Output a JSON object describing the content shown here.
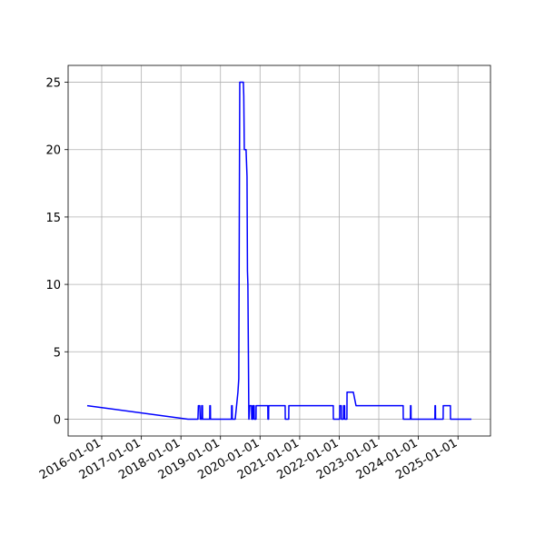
{
  "chart_data": {
    "type": "line",
    "x": [
      "2015-08-20",
      "2018-03-07",
      "2018-06-07",
      "2018-06-11",
      "2018-06-24",
      "2018-06-28",
      "2018-07-11",
      "2018-07-12",
      "2018-07-19",
      "2018-07-20",
      "2018-09-24",
      "2018-09-25",
      "2018-09-30",
      "2018-10-01",
      "2019-04-13",
      "2019-04-14",
      "2019-04-19",
      "2019-04-20",
      "2019-05-17",
      "2019-06-11",
      "2019-06-19",
      "2019-06-28",
      "2019-07-31",
      "2019-08-04",
      "2019-08-09",
      "2019-08-25",
      "2019-09-03",
      "2019-09-07",
      "2019-09-11",
      "2019-09-20",
      "2019-09-21",
      "2019-09-28",
      "2019-10-15",
      "2019-10-16",
      "2019-10-27",
      "2019-10-28",
      "2019-11-08",
      "2019-11-09",
      "2019-11-25",
      "2019-11-26",
      "2020-03-13",
      "2020-03-14",
      "2020-03-20",
      "2020-03-21",
      "2020-08-20",
      "2020-08-21",
      "2020-09-22",
      "2020-09-23",
      "2021-11-07",
      "2021-11-08",
      "2022-01-05",
      "2022-01-06",
      "2022-01-20",
      "2022-01-21",
      "2022-02-09",
      "2022-02-10",
      "2022-02-20",
      "2022-02-21",
      "2022-03-13",
      "2022-03-14",
      "2022-05-11",
      "2022-06-05",
      "2023-08-14",
      "2023-08-15",
      "2023-10-20",
      "2023-10-21",
      "2023-10-25",
      "2023-10-26",
      "2024-06-02",
      "2024-06-03",
      "2024-06-07",
      "2024-06-08",
      "2024-08-17",
      "2024-08-18",
      "2024-10-23",
      "2024-10-24",
      "2025-05-05"
    ],
    "series": [
      {
        "color": "#0000ff",
        "values": [
          1,
          0,
          0,
          1,
          1,
          0,
          0,
          1,
          1,
          0,
          0,
          1,
          1,
          0,
          0,
          1,
          1,
          0,
          0,
          2,
          3,
          25,
          25,
          24,
          20,
          20,
          18,
          11,
          10,
          0,
          0,
          1,
          1,
          0,
          0,
          1,
          1,
          0,
          0,
          1,
          1,
          0,
          0,
          1,
          1,
          0,
          0,
          1,
          1,
          0,
          0,
          1,
          1,
          0,
          0,
          1,
          1,
          0,
          0,
          2,
          2,
          1,
          1,
          0,
          0,
          1,
          1,
          0,
          0,
          1,
          1,
          0,
          0,
          1,
          1,
          0,
          0
        ]
      }
    ],
    "xlim": [
      "2015-02-25",
      "2025-10-28"
    ],
    "xticks": [
      "2016-01-01",
      "2017-01-01",
      "2018-01-01",
      "2019-01-01",
      "2020-01-01",
      "2021-01-01",
      "2022-01-01",
      "2023-01-01",
      "2024-01-01",
      "2025-01-01"
    ],
    "ylim": [
      -1.25,
      26.25
    ],
    "yticks": [
      0,
      5,
      10,
      15,
      20,
      25
    ],
    "grid": true
  }
}
